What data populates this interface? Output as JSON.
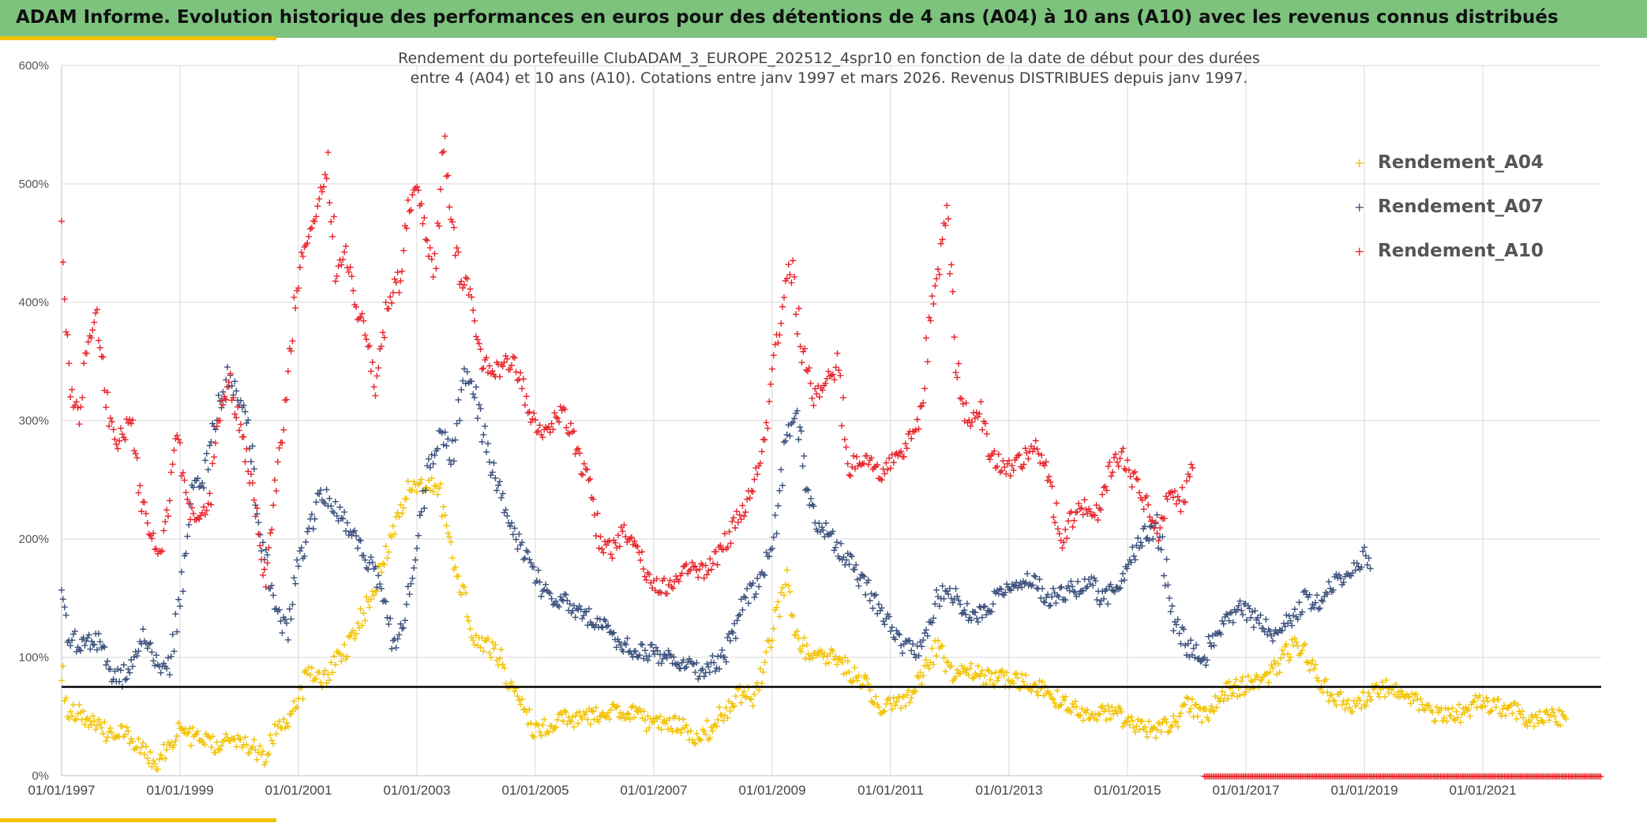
{
  "banner": {
    "title": "ADAM Informe. Evolution historique des performances en euros pour des détentions de 4 ans (A04) à 10 ans (A10) avec les revenus connus distribués"
  },
  "colors": {
    "banner": "#7dc37e",
    "accent": "#f2c200",
    "A04": "#f2c200",
    "A07": "#3a507c",
    "A10": "#e8232a",
    "reference_line": "#000000"
  },
  "chart_data": {
    "type": "scatter",
    "title_line1": "Rendement du portefeuille ClubADAM_3_EUROPE_202512_4spr10  en fonction de la date de début pour des durées",
    "title_line2": "entre 4 (A04) et 10 ans (A10). Cotations entre janv 1997 et mars 2026. Revenus DISTRIBUES depuis janv 1997.",
    "marker": "+",
    "ylim": [
      0,
      600
    ],
    "y_ticks": [
      "0%",
      "100%",
      "200%",
      "300%",
      "400%",
      "500%",
      "600%"
    ],
    "xlim": [
      "1997-01-01",
      "2023-01-01"
    ],
    "x_ticks": [
      "01/01/1997",
      "01/01/1999",
      "01/01/2001",
      "01/01/2003",
      "01/01/2005",
      "01/01/2007",
      "01/01/2009",
      "01/01/2011",
      "01/01/2013",
      "01/01/2015",
      "01/01/2017",
      "01/01/2019",
      "01/01/2021"
    ],
    "grid": true,
    "legend_position": "top-right",
    "reference_line": {
      "y": 75
    },
    "series": [
      {
        "name": "Rendement_A04",
        "color": "#f2c200",
        "x": [
          1997.0,
          1997.1,
          1997.3,
          1997.6,
          1997.8,
          1998.0,
          1998.2,
          1998.4,
          1998.6,
          1998.7,
          1998.85,
          1999.0,
          1999.3,
          1999.6,
          1999.8,
          2000.0,
          2000.2,
          2000.4,
          2000.6,
          2000.8,
          2001.0,
          2001.2,
          2001.4,
          2001.6,
          2001.8,
          2002.0,
          2002.2,
          2002.4,
          2002.6,
          2002.8,
          2003.0,
          2003.2,
          2003.4,
          2003.6,
          2003.8,
          2004.0,
          2004.2,
          2004.4,
          2004.6,
          2004.8,
          2005.0,
          2005.2,
          2005.4,
          2005.7,
          2006.0,
          2006.3,
          2006.6,
          2006.9,
          2007.2,
          2007.5,
          2007.7,
          2007.9,
          2008.2,
          2008.5,
          2008.7,
          2008.9,
          2009.1,
          2009.25,
          2009.4,
          2009.7,
          2010.0,
          2010.3,
          2010.6,
          2010.8,
          2011.0,
          2011.2,
          2011.4,
          2011.6,
          2011.8,
          2012.0,
          2012.2,
          2012.5,
          2012.8,
          2013.1,
          2013.4,
          2013.7,
          2014.0,
          2014.3,
          2014.6,
          2014.9,
          2015.2,
          2015.5,
          2015.8,
          2016.0,
          2016.3,
          2016.6,
          2016.9,
          2017.2,
          2017.5,
          2017.8,
          2018.0,
          2018.2,
          2018.4,
          2018.6,
          2018.8,
          2019.0,
          2019.3,
          2019.6,
          2019.9,
          2020.1,
          2020.3,
          2020.6,
          2020.9,
          2021.2,
          2021.5,
          2021.8,
          2022.1,
          2022.4
        ],
        "y": [
          92,
          55,
          52,
          42,
          35,
          38,
          30,
          18,
          10,
          18,
          28,
          38,
          30,
          25,
          32,
          28,
          25,
          15,
          40,
          45,
          65,
          90,
          78,
          95,
          105,
          125,
          150,
          175,
          210,
          240,
          245,
          250,
          240,
          180,
          150,
          112,
          110,
          100,
          75,
          60,
          38,
          42,
          48,
          48,
          50,
          55,
          55,
          45,
          45,
          42,
          33,
          38,
          55,
          72,
          65,
          100,
          140,
          165,
          115,
          100,
          100,
          90,
          75,
          60,
          58,
          65,
          70,
          90,
          110,
          85,
          90,
          85,
          82,
          82,
          78,
          70,
          58,
          52,
          55,
          50,
          40,
          38,
          45,
          60,
          50,
          70,
          75,
          80,
          90,
          112,
          105,
          85,
          70,
          65,
          58,
          65,
          75,
          68,
          62,
          55,
          50,
          52,
          62,
          58,
          55,
          48,
          50,
          48
        ]
      },
      {
        "name": "Rendement_A07",
        "color": "#3a507c",
        "x": [
          1997.0,
          1997.1,
          1997.3,
          1997.6,
          1997.8,
          1998.0,
          1998.2,
          1998.4,
          1998.6,
          1998.8,
          1999.0,
          1999.2,
          1999.4,
          1999.6,
          1999.8,
          2000.0,
          2000.2,
          2000.4,
          2000.6,
          2000.8,
          2001.0,
          2001.2,
          2001.4,
          2001.6,
          2001.8,
          2002.0,
          2002.2,
          2002.4,
          2002.6,
          2002.8,
          2003.0,
          2003.2,
          2003.4,
          2003.6,
          2003.8,
          2004.0,
          2004.2,
          2004.4,
          2004.6,
          2004.8,
          2005.0,
          2005.2,
          2005.4,
          2005.7,
          2006.0,
          2006.3,
          2006.6,
          2006.9,
          2007.2,
          2007.5,
          2007.7,
          2007.9,
          2008.2,
          2008.5,
          2008.7,
          2008.9,
          2009.1,
          2009.25,
          2009.4,
          2009.7,
          2010.0,
          2010.3,
          2010.6,
          2010.8,
          2011.0,
          2011.2,
          2011.4,
          2011.6,
          2011.8,
          2012.0,
          2012.2,
          2012.5,
          2012.8,
          2013.1,
          2013.4,
          2013.7,
          2014.0,
          2014.3,
          2014.6,
          2014.9,
          2015.2,
          2015.5,
          2015.8,
          2016.0,
          2016.3,
          2016.6,
          2016.9,
          2017.2,
          2017.5,
          2017.8,
          2018.0,
          2018.2,
          2018.4,
          2018.6,
          2018.8,
          2019.0,
          2019.1
        ],
        "y": [
          155,
          120,
          110,
          115,
          90,
          80,
          100,
          120,
          95,
          90,
          145,
          240,
          250,
          300,
          340,
          320,
          280,
          190,
          150,
          120,
          180,
          210,
          240,
          225,
          215,
          200,
          180,
          160,
          110,
          125,
          200,
          260,
          290,
          270,
          340,
          320,
          270,
          240,
          210,
          190,
          170,
          150,
          150,
          140,
          130,
          120,
          105,
          105,
          100,
          95,
          88,
          90,
          100,
          145,
          160,
          180,
          220,
          290,
          300,
          220,
          200,
          180,
          160,
          140,
          125,
          110,
          105,
          115,
          150,
          160,
          140,
          135,
          150,
          160,
          165,
          150,
          155,
          165,
          150,
          165,
          200,
          210,
          130,
          110,
          100,
          130,
          140,
          130,
          120,
          135,
          150,
          145,
          160,
          165,
          170,
          185,
          175
        ]
      },
      {
        "name": "Rendement_A10",
        "color": "#e8232a",
        "x": [
          1997.0,
          1997.05,
          1997.15,
          1997.3,
          1997.45,
          1997.6,
          1997.75,
          1997.9,
          1998.05,
          1998.2,
          1998.35,
          1998.5,
          1998.65,
          1998.8,
          1998.95,
          1999.1,
          1999.3,
          1999.5,
          1999.7,
          1999.85,
          2000.0,
          2000.15,
          2000.3,
          2000.45,
          2000.6,
          2000.75,
          2000.9,
          2001.05,
          2001.2,
          2001.35,
          2001.5,
          2001.65,
          2001.8,
          2001.95,
          2002.1,
          2002.3,
          2002.5,
          2002.7,
          2002.85,
          2003.0,
          2003.15,
          2003.3,
          2003.45,
          2003.6,
          2003.75,
          2003.9,
          2004.1,
          2004.3,
          2004.5,
          2004.7,
          2004.9,
          2005.1,
          2005.3,
          2005.5,
          2005.7,
          2005.9,
          2006.1,
          2006.3,
          2006.5,
          2006.7,
          2006.9,
          2007.1,
          2007.3,
          2007.5,
          2007.7,
          2007.9,
          2008.1,
          2008.3,
          2008.5,
          2008.7,
          2008.9,
          2009.0,
          2009.15,
          2009.3,
          2009.5,
          2009.7,
          2009.9,
          2010.1,
          2010.3,
          2010.5,
          2010.7,
          2010.9,
          2011.1,
          2011.3,
          2011.5,
          2011.65,
          2011.8,
          2011.95,
          2012.1,
          2012.3,
          2012.5,
          2012.7,
          2012.9,
          2013.1,
          2013.3,
          2013.5,
          2013.7,
          2013.9,
          2014.1,
          2014.3,
          2014.5,
          2014.7,
          2014.9,
          2015.1,
          2015.3,
          2015.5,
          2015.7,
          2015.9,
          2016.1
        ],
        "y": [
          480,
          410,
          320,
          310,
          370,
          385,
          320,
          280,
          290,
          300,
          230,
          210,
          180,
          220,
          300,
          230,
          210,
          230,
          310,
          330,
          300,
          260,
          220,
          160,
          240,
          300,
          380,
          440,
          460,
          480,
          520,
          420,
          440,
          400,
          380,
          330,
          400,
          420,
          480,
          500,
          460,
          420,
          540,
          460,
          420,
          410,
          350,
          340,
          350,
          345,
          310,
          290,
          300,
          310,
          270,
          250,
          195,
          190,
          205,
          195,
          165,
          160,
          160,
          170,
          175,
          170,
          190,
          205,
          225,
          250,
          285,
          350,
          380,
          440,
          360,
          320,
          330,
          345,
          260,
          270,
          260,
          255,
          270,
          280,
          300,
          380,
          420,
          480,
          350,
          300,
          310,
          270,
          260,
          260,
          270,
          280,
          240,
          200,
          220,
          230,
          220,
          260,
          270,
          250,
          230,
          200,
          240,
          230,
          260
        ]
      }
    ],
    "rug": {
      "color": "#e8232a",
      "x_start": 2016.3,
      "x_end": 2023.0,
      "y": 0
    }
  }
}
